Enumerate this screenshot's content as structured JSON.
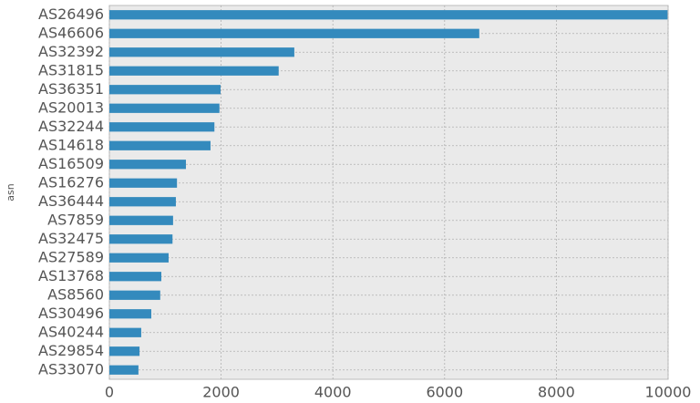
{
  "chart_data": {
    "type": "barh",
    "ylabel": "asn",
    "categories": [
      "AS26496",
      "AS46606",
      "AS32392",
      "AS31815",
      "AS36351",
      "AS20013",
      "AS32244",
      "AS14618",
      "AS16509",
      "AS16276",
      "AS36444",
      "AS7859",
      "AS32475",
      "AS27589",
      "AS13768",
      "AS8560",
      "AS30496",
      "AS40244",
      "AS29854",
      "AS33070"
    ],
    "values": [
      9990,
      6620,
      3310,
      3030,
      1990,
      1970,
      1880,
      1810,
      1370,
      1210,
      1190,
      1140,
      1130,
      1060,
      930,
      910,
      750,
      570,
      540,
      520
    ],
    "color": "#348abd",
    "xlim": [
      0,
      10000
    ],
    "xticks": [
      0,
      2000,
      4000,
      6000,
      8000,
      10000
    ],
    "grid": true
  }
}
